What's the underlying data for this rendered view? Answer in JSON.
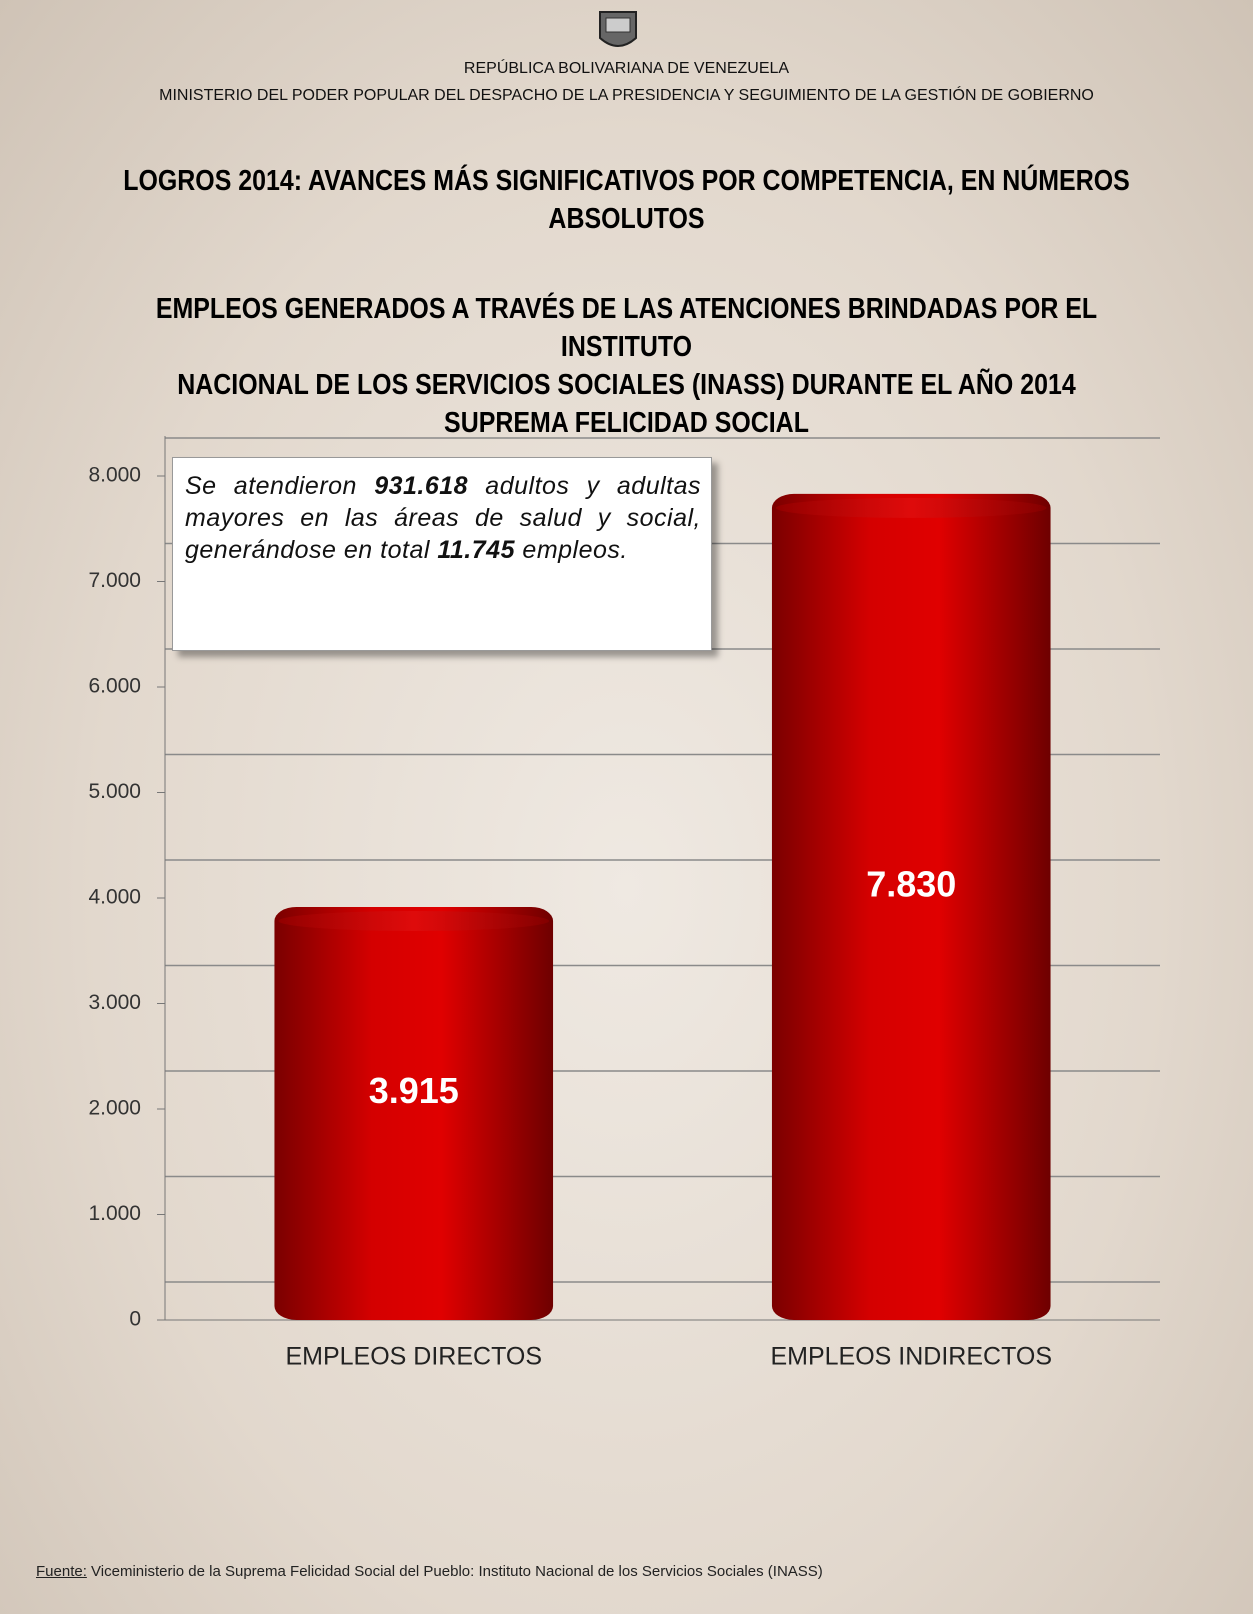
{
  "header": {
    "republic": "REPÚBLICA BOLIVARIANA DE VENEZUELA",
    "ministry": "MINISTERIO  DEL PODER POPULAR DEL DESPACHO DE LA PRESIDENCIA  Y SEGUIMIENTO  DE LA GESTIÓN DE GOBIERNO"
  },
  "chart_data": {
    "type": "bar",
    "title": [
      "LOGROS 2014: AVANCES MÁS SIGNIFICATIVOS POR COMPETENCIA, EN NÚMEROS",
      "ABSOLUTOS"
    ],
    "subtitle": [
      "EMPLEOS GENERADOS A TRAVÉS DE LAS ATENCIONES BRINDADAS POR EL INSTITUTO",
      "NACIONAL DE LOS SERVICIOS SOCIALES (INASS) DURANTE EL AÑO 2014",
      "SUPREMA FELICIDAD SOCIAL"
    ],
    "annotation": [
      "Se atendieron ",
      "931.618",
      " adultos y adultas mayores en las áreas de salud y social, generándose en total ",
      "11.745",
      " empleos."
    ],
    "categories": [
      "EMPLEOS DIRECTOS",
      "EMPLEOS INDIRECTOS"
    ],
    "values": [
      3915,
      7830
    ],
    "value_labels": [
      "3.915",
      "7.830"
    ],
    "color": "#c00000",
    "ylim": [
      0,
      8000
    ],
    "yticks": [
      0,
      {
        "value": 1000,
        "label": "1.000"
      },
      {
        "value": 2000,
        "label": "2.000"
      },
      {
        "value": 3000,
        "label": "3.000"
      },
      {
        "value": 4000,
        "label": "4.000"
      },
      {
        "value": 5000,
        "label": "5.000"
      },
      {
        "value": 6000,
        "label": "6.000"
      },
      {
        "value": 7000,
        "label": "7.000"
      },
      {
        "value": 8000,
        "label": "8.000"
      }
    ],
    "grid": true
  },
  "footer": {
    "label": "Fuente:",
    "text": " Viceministerio de la Suprema Felicidad Social del Pueblo: Instituto Nacional de los Servicios Sociales (INASS)"
  }
}
